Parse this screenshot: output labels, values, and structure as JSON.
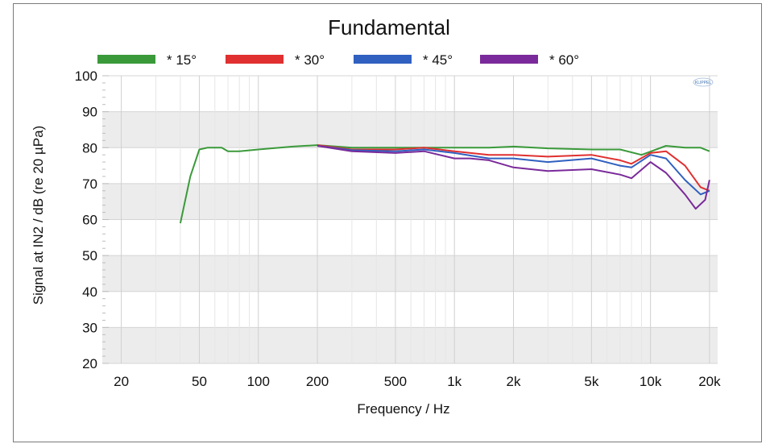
{
  "chart_data": {
    "type": "line",
    "title": "Fundamental",
    "xlabel": "Frequency / Hz",
    "ylabel": "Signal at IN2 / dB (re 20 µPa)",
    "x_scale": "log",
    "xlim": [
      16,
      22000
    ],
    "ylim": [
      20,
      100
    ],
    "x_ticks": [
      {
        "value": 20,
        "label": "20"
      },
      {
        "value": 50,
        "label": "50"
      },
      {
        "value": 100,
        "label": "100"
      },
      {
        "value": 200,
        "label": "200"
      },
      {
        "value": 500,
        "label": "500"
      },
      {
        "value": 1000,
        "label": "1k"
      },
      {
        "value": 2000,
        "label": "2k"
      },
      {
        "value": 5000,
        "label": "5k"
      },
      {
        "value": 10000,
        "label": "10k"
      },
      {
        "value": 20000,
        "label": "20k"
      }
    ],
    "y_ticks": [
      100,
      90,
      80,
      70,
      60,
      50,
      40,
      30,
      20
    ],
    "grid": true,
    "legend_position": "top",
    "logo_text": "KLIPPEL",
    "series": [
      {
        "name": "* 15°",
        "color": "#3a9a3a",
        "x": [
          40,
          45,
          50,
          55,
          65,
          70,
          80,
          100,
          150,
          200,
          300,
          500,
          700,
          1000,
          1500,
          2000,
          3000,
          5000,
          7000,
          9000,
          12000,
          15000,
          18000,
          20000
        ],
        "y": [
          59,
          72,
          79.5,
          80,
          80,
          79,
          79,
          79.5,
          80.3,
          80.7,
          80,
          80,
          80,
          80,
          80,
          80.3,
          79.8,
          79.5,
          79.5,
          78,
          80.5,
          80,
          80,
          79
        ]
      },
      {
        "name": "* 30°",
        "color": "#e03030",
        "x": [
          200,
          300,
          500,
          700,
          1000,
          1500,
          2000,
          3000,
          5000,
          7000,
          8000,
          10000,
          12000,
          15000,
          18000,
          20000
        ],
        "y": [
          80.7,
          79.5,
          79.5,
          80,
          79,
          78,
          78,
          77.5,
          78,
          76.5,
          75.5,
          78.5,
          79,
          75,
          69,
          68
        ]
      },
      {
        "name": "* 45°",
        "color": "#3060c0",
        "x": [
          200,
          300,
          500,
          700,
          1000,
          1500,
          2000,
          3000,
          5000,
          7000,
          8000,
          10000,
          12000,
          15000,
          18000,
          20000
        ],
        "y": [
          80.5,
          79.3,
          79,
          79.5,
          78.5,
          77,
          77,
          76,
          77,
          75,
          74.5,
          78,
          77,
          71,
          67,
          68
        ]
      },
      {
        "name": "* 60°",
        "color": "#7a2a9a",
        "x": [
          200,
          300,
          500,
          700,
          1000,
          1200,
          1500,
          2000,
          3000,
          5000,
          7000,
          8000,
          10000,
          12000,
          15000,
          17000,
          19000,
          20000
        ],
        "y": [
          80.5,
          79,
          78.5,
          79,
          77,
          77,
          76.5,
          74.5,
          73.5,
          74,
          72.5,
          71.5,
          76,
          73,
          67,
          63,
          65.5,
          71
        ]
      }
    ]
  }
}
